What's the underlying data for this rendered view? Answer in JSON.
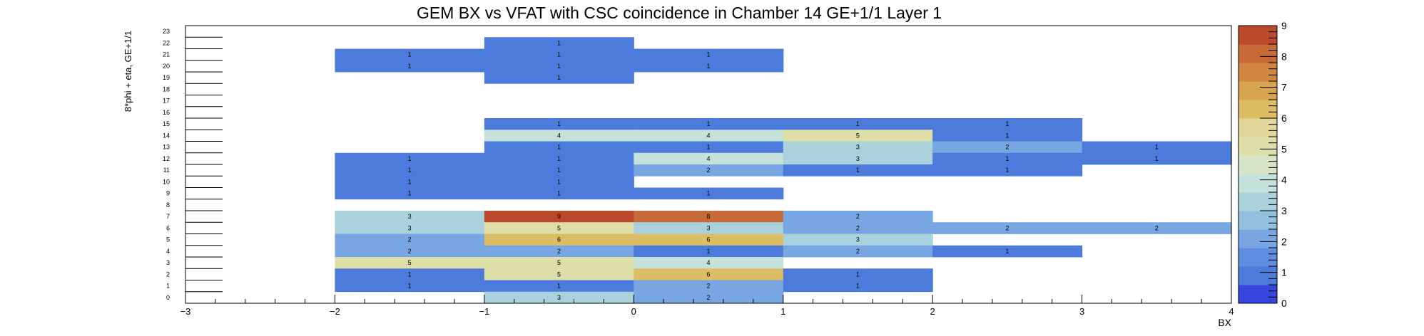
{
  "chart_data": {
    "type": "heatmap",
    "title": "GEM BX vs VFAT with CSC coincidence in Chamber 14 GE+1/1 Layer 1",
    "xlabel": "BX",
    "ylabel": "8*phi + eta, GE+1/1",
    "xlim": [
      -3,
      4
    ],
    "ylim": [
      0,
      24
    ],
    "x_ticks": [
      "−3",
      "−2",
      "−1",
      "0",
      "1",
      "2",
      "3",
      "4"
    ],
    "y_ticks": [
      "0",
      "1",
      "2",
      "3",
      "4",
      "5",
      "6",
      "7",
      "8",
      "9",
      "10",
      "11",
      "12",
      "13",
      "14",
      "15",
      "16",
      "17",
      "18",
      "19",
      "20",
      "21",
      "22",
      "23"
    ],
    "zlim": [
      0,
      9
    ],
    "z_ticks": [
      "0",
      "1",
      "2",
      "3",
      "4",
      "5",
      "6",
      "7",
      "8",
      "9"
    ],
    "palette": [
      "#3545de",
      "#4d7bdb",
      "#5f8ee0",
      "#78a6e3",
      "#93c1dd",
      "#aad2dc",
      "#c4e2da",
      "#d8e4c8",
      "#dedfa8",
      "#e2d79a",
      "#ddbd63",
      "#d8a450",
      "#cf8641",
      "#c66a38",
      "#ba4a2b"
    ],
    "cells": [
      {
        "x": -0.5,
        "y": 22,
        "v": 1
      },
      {
        "x": -1.5,
        "y": 21,
        "v": 1
      },
      {
        "x": -0.5,
        "y": 21,
        "v": 1
      },
      {
        "x": 0.5,
        "y": 21,
        "v": 1
      },
      {
        "x": -1.5,
        "y": 20,
        "v": 1
      },
      {
        "x": -0.5,
        "y": 20,
        "v": 1
      },
      {
        "x": 0.5,
        "y": 20,
        "v": 1
      },
      {
        "x": -0.5,
        "y": 19,
        "v": 1
      },
      {
        "x": -0.5,
        "y": 15,
        "v": 1
      },
      {
        "x": 0.5,
        "y": 15,
        "v": 1
      },
      {
        "x": 1.5,
        "y": 15,
        "v": 1
      },
      {
        "x": 2.5,
        "y": 15,
        "v": 1
      },
      {
        "x": -0.5,
        "y": 14,
        "v": 4
      },
      {
        "x": 0.5,
        "y": 14,
        "v": 4
      },
      {
        "x": 1.5,
        "y": 14,
        "v": 5
      },
      {
        "x": 2.5,
        "y": 14,
        "v": 1
      },
      {
        "x": -0.5,
        "y": 13,
        "v": 1
      },
      {
        "x": 0.5,
        "y": 13,
        "v": 1
      },
      {
        "x": 1.5,
        "y": 13,
        "v": 3
      },
      {
        "x": 2.5,
        "y": 13,
        "v": 2
      },
      {
        "x": 3.5,
        "y": 13,
        "v": 1
      },
      {
        "x": -1.5,
        "y": 12,
        "v": 1
      },
      {
        "x": -0.5,
        "y": 12,
        "v": 1
      },
      {
        "x": 0.5,
        "y": 12,
        "v": 4
      },
      {
        "x": 1.5,
        "y": 12,
        "v": 3
      },
      {
        "x": 2.5,
        "y": 12,
        "v": 1
      },
      {
        "x": 3.5,
        "y": 12,
        "v": 1
      },
      {
        "x": -1.5,
        "y": 11,
        "v": 1
      },
      {
        "x": -0.5,
        "y": 11,
        "v": 1
      },
      {
        "x": 0.5,
        "y": 11,
        "v": 2
      },
      {
        "x": 1.5,
        "y": 11,
        "v": 1
      },
      {
        "x": 2.5,
        "y": 11,
        "v": 1
      },
      {
        "x": -1.5,
        "y": 10,
        "v": 1
      },
      {
        "x": -0.5,
        "y": 10,
        "v": 1
      },
      {
        "x": -1.5,
        "y": 9,
        "v": 1
      },
      {
        "x": -0.5,
        "y": 9,
        "v": 1
      },
      {
        "x": 0.5,
        "y": 9,
        "v": 1
      },
      {
        "x": -1.5,
        "y": 7,
        "v": 3
      },
      {
        "x": -0.5,
        "y": 7,
        "v": 9
      },
      {
        "x": 0.5,
        "y": 7,
        "v": 8
      },
      {
        "x": 1.5,
        "y": 7,
        "v": 2
      },
      {
        "x": -1.5,
        "y": 6,
        "v": 3
      },
      {
        "x": -0.5,
        "y": 6,
        "v": 5
      },
      {
        "x": 0.5,
        "y": 6,
        "v": 3
      },
      {
        "x": 1.5,
        "y": 6,
        "v": 2
      },
      {
        "x": 2.5,
        "y": 6,
        "v": 2
      },
      {
        "x": 3.5,
        "y": 6,
        "v": 2
      },
      {
        "x": -1.5,
        "y": 5,
        "v": 2
      },
      {
        "x": -0.5,
        "y": 5,
        "v": 6
      },
      {
        "x": 0.5,
        "y": 5,
        "v": 6
      },
      {
        "x": 1.5,
        "y": 5,
        "v": 3
      },
      {
        "x": -1.5,
        "y": 4,
        "v": 2
      },
      {
        "x": -0.5,
        "y": 4,
        "v": 2
      },
      {
        "x": 0.5,
        "y": 4,
        "v": 1
      },
      {
        "x": 1.5,
        "y": 4,
        "v": 2
      },
      {
        "x": 2.5,
        "y": 4,
        "v": 1
      },
      {
        "x": -1.5,
        "y": 3,
        "v": 5
      },
      {
        "x": -0.5,
        "y": 3,
        "v": 5
      },
      {
        "x": 0.5,
        "y": 3,
        "v": 4
      },
      {
        "x": -1.5,
        "y": 2,
        "v": 1
      },
      {
        "x": -0.5,
        "y": 2,
        "v": 5
      },
      {
        "x": 0.5,
        "y": 2,
        "v": 6
      },
      {
        "x": 1.5,
        "y": 2,
        "v": 1
      },
      {
        "x": -1.5,
        "y": 1,
        "v": 1
      },
      {
        "x": -0.5,
        "y": 1,
        "v": 1
      },
      {
        "x": 0.5,
        "y": 1,
        "v": 2
      },
      {
        "x": 1.5,
        "y": 1,
        "v": 1
      },
      {
        "x": -0.5,
        "y": 0,
        "v": 3
      },
      {
        "x": 0.5,
        "y": 0,
        "v": 2
      }
    ]
  }
}
